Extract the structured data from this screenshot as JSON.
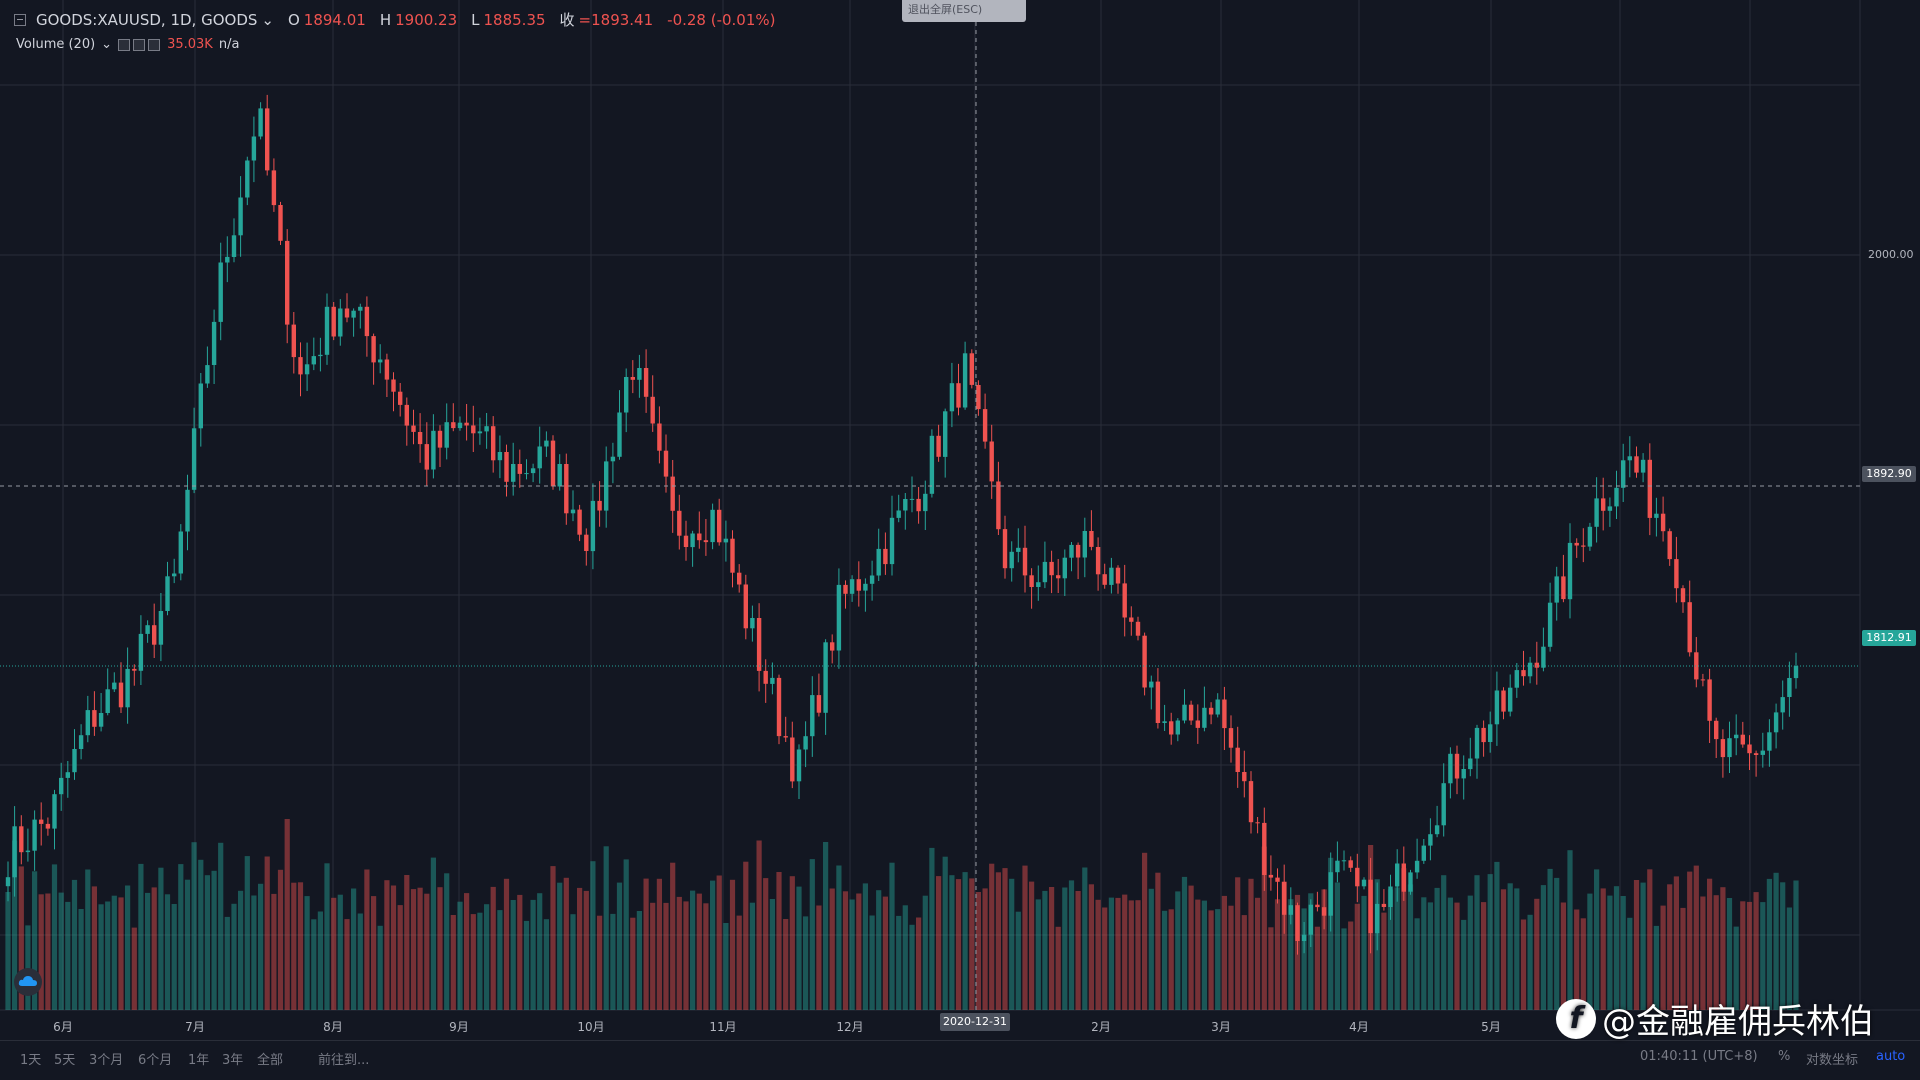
{
  "legend": {
    "symbol": "GOODS:XAUUSD, 1D, GOODS",
    "open_label": "O",
    "open": "1894.01",
    "high_label": "H",
    "high": "1900.23",
    "low_label": "L",
    "low": "1885.35",
    "close_label": "收",
    "close": "=1893.41",
    "change": "-0.28 (-0.01%)"
  },
  "volume_legend": {
    "label": "Volume (20)",
    "value": "35.03K",
    "extra": "n/a"
  },
  "exit_fullscreen": "退出全屏(ESC)",
  "price_axis": {
    "labels": [
      "2000.00"
    ],
    "crosshair_price": "1892.90",
    "last_price": "1812.91"
  },
  "crosshair_date": "2020-12-31",
  "time_axis": [
    "6月",
    "7月",
    "8月",
    "9月",
    "10月",
    "11月",
    "12月",
    "2月",
    "3月",
    "4月",
    "5月"
  ],
  "range_buttons": [
    "1天",
    "5天",
    "3个月",
    "6个月",
    "1年",
    "3年",
    "全部"
  ],
  "goto": "前往到...",
  "clock": "01:40:11 (UTC+8)",
  "percent": "%",
  "log_scale": "对数坐标",
  "auto": "auto",
  "watermark": "@金融雇佣兵林伯",
  "colors": {
    "up": "#26a69a",
    "down": "#ef5350",
    "background": "#131722",
    "grid": "#2a2e39"
  },
  "icons": {
    "collapse": "minus-square-icon",
    "chart_logo": "cloud-icon"
  },
  "chart_data": {
    "type": "candlestick",
    "symbol": "GOODS:XAUUSD",
    "interval": "1D",
    "x": [
      "2020-06",
      "2020-07",
      "2020-08",
      "2020-09",
      "2020-10",
      "2020-11",
      "2020-12",
      "2021-01",
      "2021-02",
      "2021-03",
      "2021-04",
      "2021-05",
      "2021-06"
    ],
    "close_anchors": [
      1730,
      1745,
      1790,
      1810,
      1850,
      1975,
      2060,
      1940,
      1975,
      1950,
      1905,
      1920,
      1900,
      1905,
      1870,
      1950,
      1875,
      1880,
      1820,
      1765,
      1840,
      1865,
      1895,
      1945,
      1860,
      1850,
      1870,
      1825,
      1780,
      1800,
      1740,
      1695,
      1720,
      1700,
      1740,
      1775,
      1795,
      1830,
      1880,
      1905,
      1870,
      1775,
      1770,
      1812.91
    ],
    "ylim": [
      1660,
      2100
    ],
    "series_volume": "Volume (20)",
    "last_price": 1812.91,
    "crosshair_price": 1892.9
  }
}
